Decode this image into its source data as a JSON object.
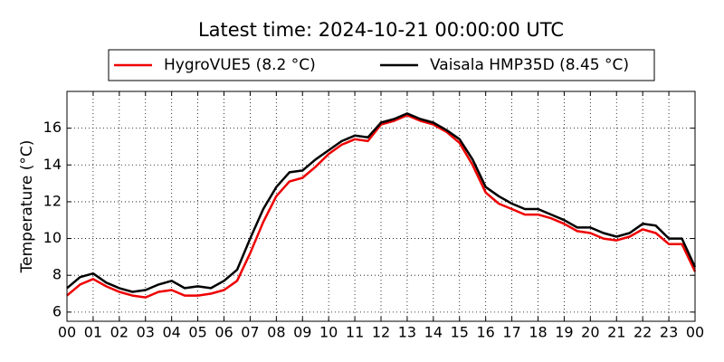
{
  "chart_data": {
    "type": "line",
    "title": "Latest time: 2024-10-21 00:00:00 UTC",
    "y_label": "Temperature (°C)",
    "x": [
      0,
      0.5,
      1,
      1.5,
      2,
      2.5,
      3,
      3.5,
      4,
      4.5,
      5,
      5.5,
      6,
      6.5,
      7,
      7.5,
      8,
      8.5,
      9,
      9.5,
      10,
      10.5,
      11,
      11.5,
      12,
      12.5,
      13,
      13.5,
      14,
      14.5,
      15,
      15.5,
      16,
      16.5,
      17,
      17.5,
      18,
      18.5,
      19,
      19.5,
      20,
      20.5,
      21,
      21.5,
      22,
      22.5,
      23,
      23.5,
      24
    ],
    "series": [
      {
        "name": "HygroVUE5 (8.2 °C)",
        "color": "#ee0000",
        "values": [
          6.9,
          7.5,
          7.8,
          7.4,
          7.1,
          6.9,
          6.8,
          7.1,
          7.2,
          6.9,
          6.9,
          7.0,
          7.2,
          7.7,
          9.2,
          10.9,
          12.3,
          13.1,
          13.3,
          13.9,
          14.6,
          15.1,
          15.4,
          15.3,
          16.2,
          16.4,
          16.7,
          16.4,
          16.2,
          15.8,
          15.2,
          14.0,
          12.5,
          11.9,
          11.6,
          11.3,
          11.3,
          11.1,
          10.8,
          10.4,
          10.3,
          10.0,
          9.9,
          10.1,
          10.5,
          10.3,
          9.7,
          9.7,
          8.2
        ]
      },
      {
        "name": "Vaisala HMP35D (8.45 °C)",
        "color": "#000000",
        "values": [
          7.3,
          7.9,
          8.1,
          7.6,
          7.3,
          7.1,
          7.2,
          7.5,
          7.7,
          7.3,
          7.4,
          7.3,
          7.7,
          8.3,
          10.0,
          11.6,
          12.8,
          13.6,
          13.7,
          14.3,
          14.8,
          15.3,
          15.6,
          15.5,
          16.3,
          16.5,
          16.8,
          16.5,
          16.3,
          15.9,
          15.4,
          14.3,
          12.8,
          12.3,
          11.9,
          11.6,
          11.6,
          11.3,
          11.0,
          10.6,
          10.6,
          10.3,
          10.1,
          10.3,
          10.8,
          10.7,
          10.0,
          10.0,
          8.45
        ]
      }
    ],
    "xlim": [
      0,
      24
    ],
    "xticks": [
      {
        "value": 0,
        "label": "00"
      },
      {
        "value": 1,
        "label": "01"
      },
      {
        "value": 2,
        "label": "02"
      },
      {
        "value": 3,
        "label": "03"
      },
      {
        "value": 4,
        "label": "04"
      },
      {
        "value": 5,
        "label": "05"
      },
      {
        "value": 6,
        "label": "06"
      },
      {
        "value": 7,
        "label": "07"
      },
      {
        "value": 8,
        "label": "08"
      },
      {
        "value": 9,
        "label": "09"
      },
      {
        "value": 10,
        "label": "10"
      },
      {
        "value": 11,
        "label": "11"
      },
      {
        "value": 12,
        "label": "12"
      },
      {
        "value": 13,
        "label": "13"
      },
      {
        "value": 14,
        "label": "14"
      },
      {
        "value": 15,
        "label": "15"
      },
      {
        "value": 16,
        "label": "16"
      },
      {
        "value": 17,
        "label": "17"
      },
      {
        "value": 18,
        "label": "18"
      },
      {
        "value": 19,
        "label": "19"
      },
      {
        "value": 20,
        "label": "20"
      },
      {
        "value": 21,
        "label": "21"
      },
      {
        "value": 22,
        "label": "22"
      },
      {
        "value": 23,
        "label": "23"
      },
      {
        "value": 24,
        "label": "00"
      }
    ],
    "ylim": [
      5.5,
      18
    ],
    "yticks": [
      6,
      8,
      10,
      12,
      14,
      16
    ],
    "grid": true
  }
}
